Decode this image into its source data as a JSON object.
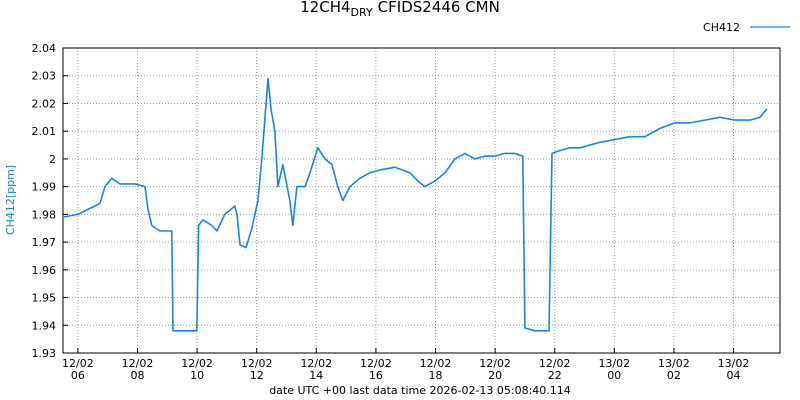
{
  "chart_data": {
    "type": "line",
    "title": "12CH4",
    "title_subscript": "DRY",
    "title_suffix": "CFIDS2446 CMN",
    "x_label": "date UTC +00 last data time 2026-02-13 05:08:40.114",
    "y_label": "CH412[ppm]",
    "xlim": [
      5.5,
      29.56
    ],
    "ylim": [
      1.93,
      2.04
    ],
    "xticks": [
      {
        "value": 6,
        "label": "12/02\n06"
      },
      {
        "value": 8,
        "label": "12/02\n08"
      },
      {
        "value": 10,
        "label": "12/02\n10"
      },
      {
        "value": 12,
        "label": "12/02\n12"
      },
      {
        "value": 14,
        "label": "12/02\n14"
      },
      {
        "value": 16,
        "label": "12/02\n16"
      },
      {
        "value": 18,
        "label": "12/02\n18"
      },
      {
        "value": 20,
        "label": "12/02\n20"
      },
      {
        "value": 22,
        "label": "12/02\n22"
      },
      {
        "value": 24,
        "label": "13/02\n00"
      },
      {
        "value": 26,
        "label": "13/02\n02"
      },
      {
        "value": 28,
        "label": "13/02\n04"
      }
    ],
    "yticks": [
      1.93,
      1.94,
      1.95,
      1.96,
      1.97,
      1.98,
      1.99,
      2,
      2.01,
      2.02,
      2.03,
      2.04
    ],
    "grid": true,
    "legend": "top-right",
    "x": [
      5.5,
      6.0,
      6.57,
      6.74,
      6.91,
      7.14,
      7.41,
      7.91,
      8.25,
      8.35,
      8.48,
      8.75,
      9.15,
      9.19,
      9.59,
      9.99,
      10.05,
      10.19,
      10.5,
      10.66,
      10.93,
      11.27,
      11.34,
      11.44,
      11.64,
      11.84,
      12.04,
      12.17,
      12.28,
      12.38,
      12.48,
      12.61,
      12.71,
      12.88,
      13.11,
      13.21,
      13.35,
      13.62,
      13.79,
      14.05,
      14.29,
      14.52,
      14.72,
      14.89,
      15.13,
      15.46,
      15.8,
      16.13,
      16.64,
      17.14,
      17.41,
      17.64,
      17.98,
      18.32,
      18.65,
      18.99,
      19.32,
      19.66,
      19.99,
      20.33,
      20.66,
      20.93,
      21.0,
      21.34,
      21.81,
      21.91,
      22.17,
      22.51,
      22.85,
      23.18,
      23.52,
      24.02,
      24.52,
      25.03,
      25.53,
      26.03,
      26.54,
      27.04,
      27.54,
      28.05,
      28.55,
      28.89,
      29.12
    ],
    "series": [
      {
        "name": "CH412",
        "color": "#1a84e6",
        "values": [
          1.979,
          1.98,
          1.983,
          1.984,
          1.99,
          1.993,
          1.991,
          1.991,
          1.99,
          1.982,
          1.976,
          1.974,
          1.974,
          1.938,
          1.938,
          1.938,
          1.976,
          1.978,
          1.976,
          1.974,
          1.98,
          1.983,
          1.98,
          1.969,
          1.968,
          1.975,
          1.985,
          2.0,
          2.015,
          2.029,
          2.018,
          2.01,
          1.99,
          1.998,
          1.985,
          1.976,
          1.99,
          1.99,
          1.995,
          2.004,
          2.0,
          1.998,
          1.99,
          1.985,
          1.99,
          1.993,
          1.995,
          1.996,
          1.997,
          1.995,
          1.992,
          1.99,
          1.992,
          1.995,
          2.0,
          2.002,
          2.0,
          2.001,
          2.001,
          2.002,
          2.002,
          2.001,
          1.939,
          1.938,
          1.938,
          2.002,
          2.003,
          2.004,
          2.004,
          2.005,
          2.006,
          2.007,
          2.008,
          2.008,
          2.011,
          2.013,
          2.013,
          2.014,
          2.015,
          2.014,
          2.014,
          2.015,
          2.018
        ]
      }
    ]
  }
}
